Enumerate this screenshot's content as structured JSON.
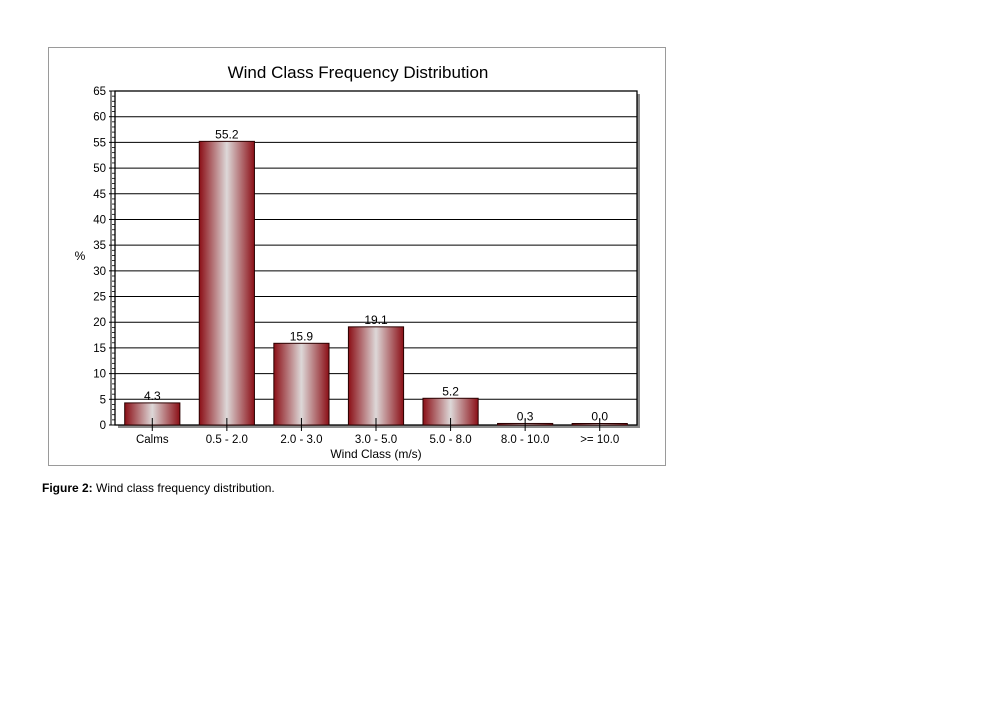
{
  "chart_data": {
    "type": "bar",
    "title": "Wind Class Frequency Distribution",
    "xlabel": "Wind Class (m/s)",
    "ylabel": "%",
    "categories": [
      "Calms",
      "0.5 -  2.0",
      "2.0 -  3.0",
      "3.0 -  5.0",
      "5.0 -  8.0",
      "8.0 - 10.0",
      ">= 10.0"
    ],
    "values": [
      4.3,
      55.2,
      15.9,
      19.1,
      5.2,
      0.3,
      0.0
    ],
    "value_labels": [
      "4.3",
      "55.2",
      "15.9",
      "19.1",
      "5.2",
      "0.3",
      "0.0"
    ],
    "ylim": [
      0,
      65
    ],
    "yticks": [
      0,
      5,
      10,
      15,
      20,
      25,
      30,
      35,
      40,
      45,
      50,
      55,
      60,
      65
    ],
    "grid": true,
    "legend": "none",
    "bar_color": "#8b0f16",
    "bar_highlight": "#ddd8d8"
  },
  "caption": {
    "label": "Figure 2:",
    "text": "Wind class frequency distribution."
  }
}
